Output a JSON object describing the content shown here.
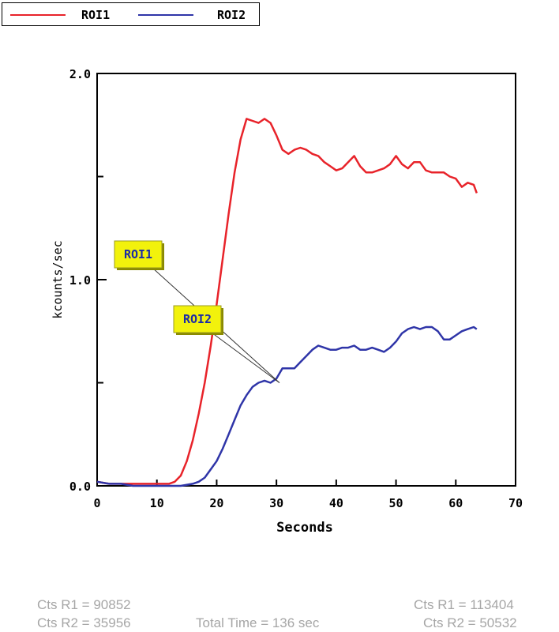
{
  "legend": {
    "items": [
      {
        "name": "ROI1",
        "color": "#e8232a"
      },
      {
        "name": "ROI2",
        "color": "#2f35a8"
      }
    ]
  },
  "chart_data": {
    "type": "line",
    "title": "",
    "xlabel": "Seconds",
    "ylabel": "kcounts/sec",
    "xlim": [
      0,
      70
    ],
    "ylim": [
      0,
      2.0
    ],
    "x_ticks": [
      "0",
      "10",
      "20",
      "30",
      "40",
      "50",
      "60",
      "70"
    ],
    "y_ticks": [
      "0.0",
      "1.0",
      "2.0"
    ],
    "grid": false,
    "legend_placement": "top-left",
    "series": [
      {
        "name": "ROI1",
        "color": "#e8232a",
        "x": [
          0,
          2,
          4,
          6,
          8,
          10,
          12,
          13,
          14,
          15,
          16,
          17,
          18,
          19,
          20,
          21,
          22,
          23,
          24,
          25,
          26,
          27,
          28,
          29,
          30,
          31,
          32,
          33,
          34,
          35,
          36,
          37,
          38,
          39,
          40,
          41,
          42,
          43,
          44,
          45,
          46,
          47,
          48,
          49,
          50,
          51,
          52,
          53,
          54,
          55,
          56,
          57,
          58,
          59,
          60,
          61,
          62,
          63,
          63.5
        ],
        "y": [
          0.02,
          0.01,
          0.01,
          0.01,
          0.01,
          0.01,
          0.01,
          0.02,
          0.05,
          0.12,
          0.22,
          0.35,
          0.5,
          0.68,
          0.88,
          1.1,
          1.32,
          1.52,
          1.68,
          1.78,
          1.77,
          1.76,
          1.78,
          1.76,
          1.7,
          1.63,
          1.61,
          1.63,
          1.64,
          1.63,
          1.61,
          1.6,
          1.57,
          1.55,
          1.53,
          1.54,
          1.57,
          1.6,
          1.55,
          1.52,
          1.52,
          1.53,
          1.54,
          1.56,
          1.6,
          1.56,
          1.54,
          1.57,
          1.57,
          1.53,
          1.52,
          1.52,
          1.52,
          1.5,
          1.49,
          1.45,
          1.47,
          1.46,
          1.42
        ]
      },
      {
        "name": "ROI2",
        "color": "#2f35a8",
        "x": [
          0,
          2,
          4,
          6,
          8,
          10,
          12,
          14,
          16,
          17,
          18,
          19,
          20,
          21,
          22,
          23,
          24,
          25,
          26,
          27,
          28,
          29,
          30,
          31,
          32,
          33,
          34,
          35,
          36,
          37,
          38,
          39,
          40,
          41,
          42,
          43,
          44,
          45,
          46,
          47,
          48,
          49,
          50,
          51,
          52,
          53,
          54,
          55,
          56,
          57,
          58,
          59,
          60,
          61,
          62,
          63,
          63.5
        ],
        "y": [
          0.02,
          0.01,
          0.01,
          0.0,
          0.0,
          0.0,
          0.0,
          0.0,
          0.01,
          0.02,
          0.04,
          0.08,
          0.12,
          0.18,
          0.25,
          0.32,
          0.39,
          0.44,
          0.48,
          0.5,
          0.51,
          0.5,
          0.52,
          0.57,
          0.57,
          0.57,
          0.6,
          0.63,
          0.66,
          0.68,
          0.67,
          0.66,
          0.66,
          0.67,
          0.67,
          0.68,
          0.66,
          0.66,
          0.67,
          0.66,
          0.65,
          0.67,
          0.7,
          0.74,
          0.76,
          0.77,
          0.76,
          0.77,
          0.77,
          0.75,
          0.71,
          0.71,
          0.73,
          0.75,
          0.76,
          0.77,
          0.76
        ]
      }
    ],
    "annotations": [
      {
        "label": "ROI1",
        "series": "ROI1",
        "point": [
          30.5,
          0.5
        ]
      },
      {
        "label": "ROI2",
        "series": "ROI2",
        "point": [
          30.5,
          0.5
        ]
      }
    ]
  },
  "footer": {
    "left_r1": "Cts R1 = 90852",
    "left_r2": "Cts R2 = 35956",
    "total_time": "Total Time = 136 sec",
    "right_r1": "Cts R1 = 113404",
    "right_r2": "Cts R2 = 50532"
  }
}
